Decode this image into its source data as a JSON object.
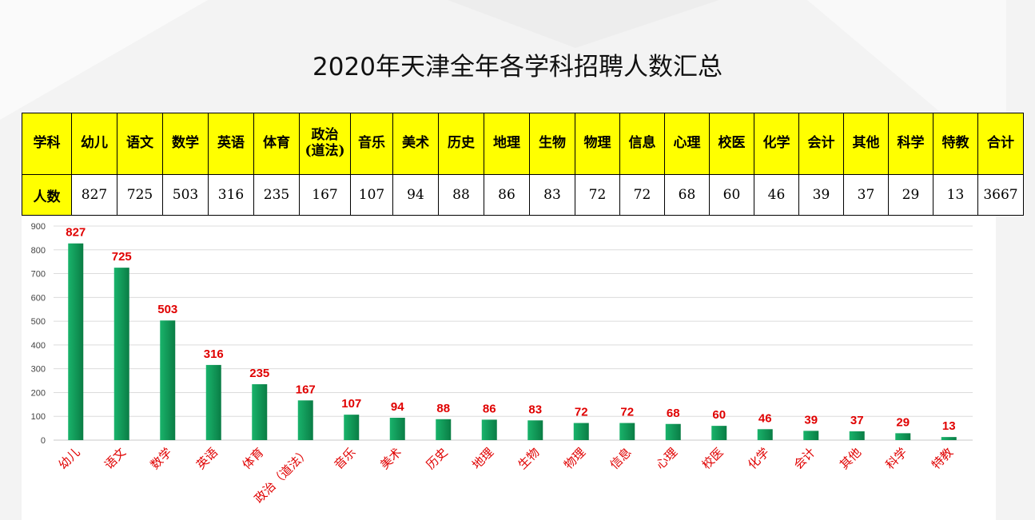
{
  "title": "2020年天津全年各学科招聘人数汇总",
  "table": {
    "header_label": "学科",
    "count_label": "人数",
    "subjects": [
      "幼儿",
      "语文",
      "数学",
      "英语",
      "体育",
      "政治\n(道法)",
      "音乐",
      "美术",
      "历史",
      "地理",
      "生物",
      "物理",
      "信息",
      "心理",
      "校医",
      "化学",
      "会计",
      "其他",
      "科学",
      "特教",
      "合计"
    ],
    "counts": [
      "827",
      "725",
      "503",
      "316",
      "235",
      "167",
      "107",
      "94",
      "88",
      "86",
      "83",
      "72",
      "72",
      "68",
      "60",
      "46",
      "39",
      "37",
      "29",
      "13",
      "3667"
    ]
  },
  "chart_data": {
    "type": "bar",
    "categories": [
      "幼儿",
      "语文",
      "数学",
      "英语",
      "体育",
      "政治（道法）",
      "音乐",
      "美术",
      "历史",
      "地理",
      "生物",
      "物理",
      "信息",
      "心理",
      "校医",
      "化学",
      "会计",
      "其他",
      "科学",
      "特教"
    ],
    "values": [
      827,
      725,
      503,
      316,
      235,
      167,
      107,
      94,
      88,
      86,
      83,
      72,
      72,
      68,
      60,
      46,
      39,
      37,
      29,
      13
    ],
    "title": "",
    "xlabel": "",
    "ylabel": "",
    "ylim": [
      0,
      900
    ],
    "yticks": [
      0,
      100,
      200,
      300,
      400,
      500,
      600,
      700,
      800,
      900
    ],
    "grid": true,
    "legend": "none",
    "bar_color_top": "#19b36b",
    "bar_color_bottom": "#0a7d45",
    "label_color": "#e00000",
    "category_color": "#e00000"
  }
}
